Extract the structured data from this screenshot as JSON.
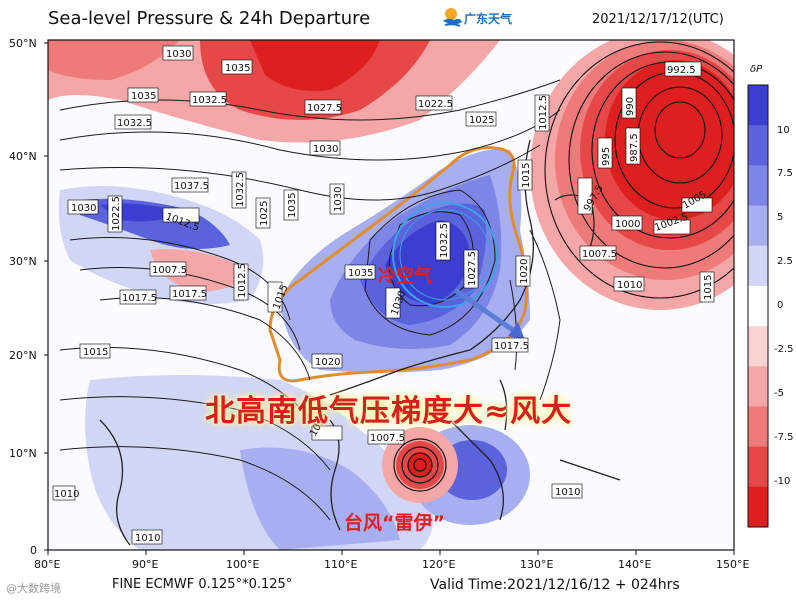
{
  "header": {
    "title": "Sea-level Pressure & 24h Departure",
    "logo_text": "广东天气",
    "datetime": "2021/12/17/12(UTC)"
  },
  "footer": {
    "model_text": "FINE ECMWF 0.125°*0.125°",
    "valid_text": "Valid Time:2021/12/16/12 + 024hrs",
    "watermark": "@大数跨境"
  },
  "annotations": {
    "headline": "北高南低气压梯度大≈风大",
    "dry_air": "冷空气",
    "typhoon": "台风“雷伊”"
  },
  "axes": {
    "lat_labels": [
      "50°N",
      "40°N",
      "30°N",
      "20°N",
      "10°N",
      "0"
    ],
    "lon_labels": [
      "80°E",
      "90°E",
      "100°E",
      "110°E",
      "120°E",
      "130°E",
      "140°E",
      "150°E"
    ]
  },
  "colorbar": {
    "title": "δP",
    "ticks": [
      "10",
      "7.5",
      "5",
      "2.5",
      "0",
      "-2.5",
      "-5",
      "-7.5",
      "-10"
    ],
    "colors": [
      "#3b3fcf",
      "#5a62dc",
      "#7d86e6",
      "#a7aff0",
      "#d2d6f6",
      "#ffffff",
      "#fbd2d2",
      "#f5a6a6",
      "#ef7a7a",
      "#e64848",
      "#dd1f1f"
    ]
  },
  "isobar_labels": [
    "1030",
    "1035",
    "1035",
    "1032.5",
    "1032.5",
    "1027.5",
    "1022.5",
    "1025",
    "1012.5",
    "1030",
    "1037.5",
    "1030",
    "1022.5",
    "1012.5",
    "1032.5",
    "1025",
    "1035",
    "1030",
    "1032.5",
    "1027.5",
    "1020",
    "1015",
    "1007.5",
    "1017.5",
    "1017.5",
    "1012.5",
    "1015",
    "1035",
    "1030",
    "1020",
    "1017.5",
    "1015",
    "1015",
    "1007.5",
    "1010",
    "1010",
    "992.5",
    "990",
    "995",
    "987.5",
    "997.5",
    "1000",
    "1002.5",
    "1005",
    "1007.5",
    "1010",
    "1015",
    "1010"
  ],
  "colors": {
    "headline": "#d81f1f",
    "positive": "#dd1f1f",
    "negative": "#3b3fcf",
    "outline": "#e38c2e",
    "circle": "#3aa3e8"
  }
}
